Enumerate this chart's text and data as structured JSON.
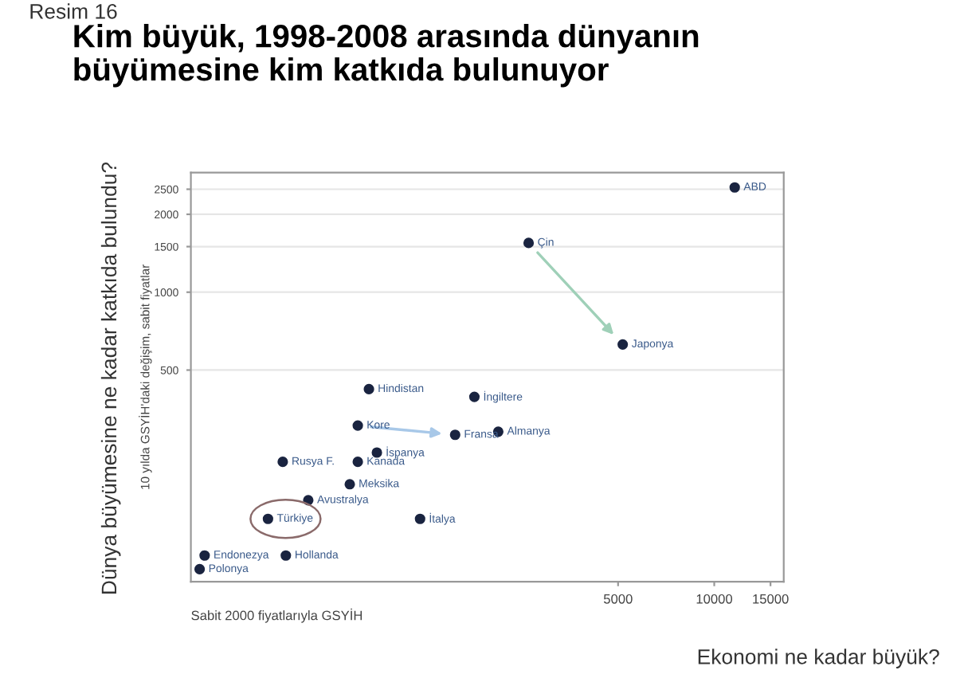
{
  "chart_data": {
    "type": "scatter",
    "title": "Kim büyük, 1998-2008 arasında dünyanın\nbüyümesine kim katkıda bulunuyor",
    "xlabel": "Sabit 2000 fiyatlarıyla GSYİH",
    "ylabel": "10 yılda GSYİH'daki değişim, sabit fiyatlar",
    "log": "xy",
    "xlim": [
      230,
      16500
    ],
    "ylim": [
      76,
      2900
    ],
    "xticks": [
      5000,
      10000,
      15000
    ],
    "yticks": [
      500,
      1000,
      1500,
      2000,
      2500
    ],
    "grid": "y",
    "marker": "circle",
    "series": [
      {
        "color": "#1a2440",
        "x": [
          11590,
          2624,
          5170,
          830,
          1775,
          766,
          1545,
          2108,
          446,
          879,
          766,
          723,
          536,
          401,
          1200,
          254,
          456,
          245
        ],
        "values": [
          2540,
          1550,
          628,
          422,
          394,
          305,
          281,
          289,
          221,
          240,
          221,
          181,
          157,
          133,
          133,
          96,
          96,
          85
        ]
      }
    ],
    "annotations": [
      {
        "text": "ABD",
        "x": 11590,
        "y": 2540
      },
      {
        "text": "Çin",
        "x": 2624,
        "y": 1550
      },
      {
        "text": "Japonya",
        "x": 5170,
        "y": 628
      },
      {
        "text": "Hindistan",
        "x": 830,
        "y": 422
      },
      {
        "text": "İngiltere",
        "x": 1775,
        "y": 394
      },
      {
        "text": "Kore",
        "x": 766,
        "y": 305
      },
      {
        "text": "Fransa",
        "x": 1545,
        "y": 281
      },
      {
        "text": "Almanya",
        "x": 2108,
        "y": 289
      },
      {
        "text": "Rusya F.",
        "x": 446,
        "y": 221
      },
      {
        "text": "İspanya",
        "x": 879,
        "y": 240
      },
      {
        "text": "Kanada",
        "x": 766,
        "y": 221
      },
      {
        "text": "Meksika",
        "x": 723,
        "y": 181
      },
      {
        "text": "Avustralya",
        "x": 536,
        "y": 157
      },
      {
        "text": "Türkiye",
        "x": 401,
        "y": 133
      },
      {
        "text": "İtalya",
        "x": 1200,
        "y": 133
      },
      {
        "text": "Endonezya",
        "x": 254,
        "y": 96
      },
      {
        "text": "Hollanda",
        "x": 456,
        "y": 96
      },
      {
        "text": "Polonya",
        "x": 245,
        "y": 85
      },
      "Resim 16",
      "Dünya büyümesine ne kadar katkıda bulundu?",
      "Ekonomi ne kadar büyük?"
    ]
  }
}
